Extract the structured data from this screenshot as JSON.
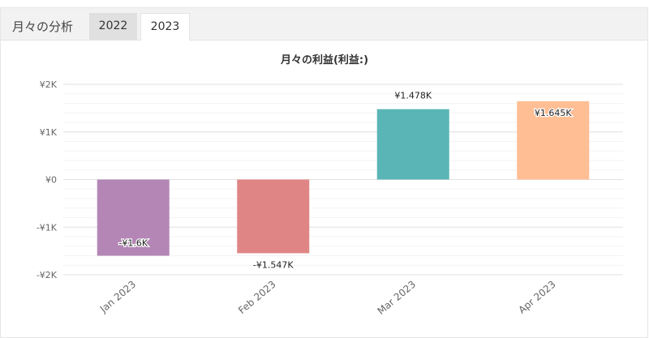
{
  "tabs": {
    "title": "月々の分析",
    "items": [
      "2022",
      "2023"
    ],
    "active": "2023"
  },
  "chart_data": {
    "type": "bar",
    "title": "月々の利益(利益:)",
    "categories": [
      "Jan 2023",
      "Feb 2023",
      "Mar 2023",
      "Apr 2023"
    ],
    "values": [
      -1600,
      -1547,
      1478,
      1645
    ],
    "value_labels": [
      "-¥1.6K",
      "-¥1.547K",
      "¥1.478K",
      "¥1.645K"
    ],
    "colors": [
      "#b486b6",
      "#e08585",
      "#5ab6b6",
      "#ffbe94"
    ],
    "yticks": [
      "¥2K",
      "¥1K",
      "¥0",
      "-¥1K",
      "-¥2K"
    ],
    "ylim": [
      -2000,
      2000
    ],
    "grid": true,
    "legend": "none"
  }
}
